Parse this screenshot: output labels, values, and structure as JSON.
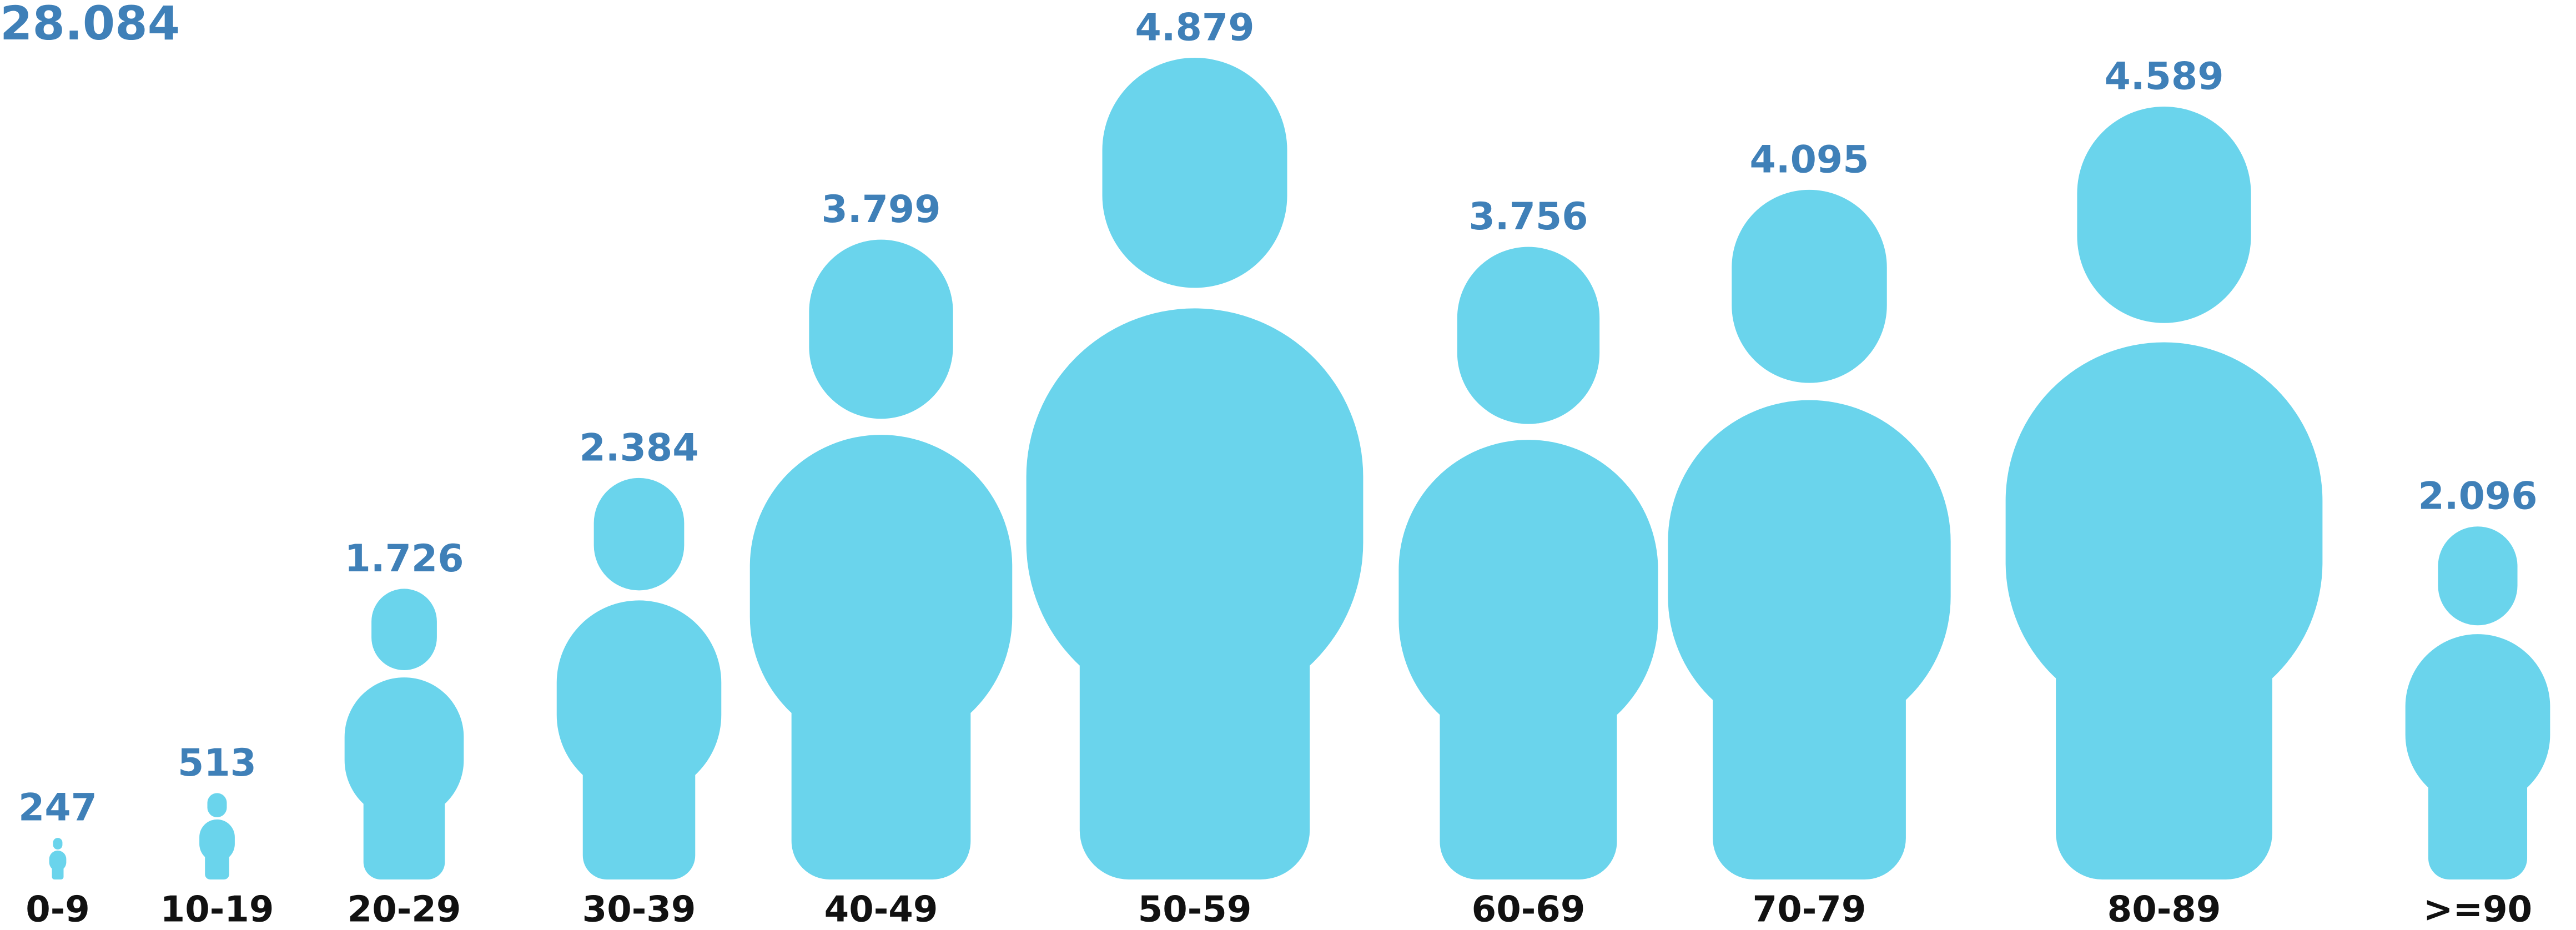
{
  "chart_data": {
    "type": "pictogram",
    "title": "28.084",
    "categories": [
      "0-9",
      "10-19",
      "20-29",
      "30-39",
      "40-49",
      "50-59",
      "60-69",
      "70-79",
      "80-89",
      ">=90"
    ],
    "values": [
      247,
      513,
      1726,
      2384,
      3799,
      4879,
      3756,
      4095,
      4589,
      2096
    ],
    "value_labels": [
      "247",
      "513",
      "1.726",
      "2.384",
      "3.799",
      "4.879",
      "3.756",
      "4.095",
      "4.589",
      "2.096"
    ],
    "color": "#6ad4ec",
    "label_color": "#3f80b8"
  }
}
